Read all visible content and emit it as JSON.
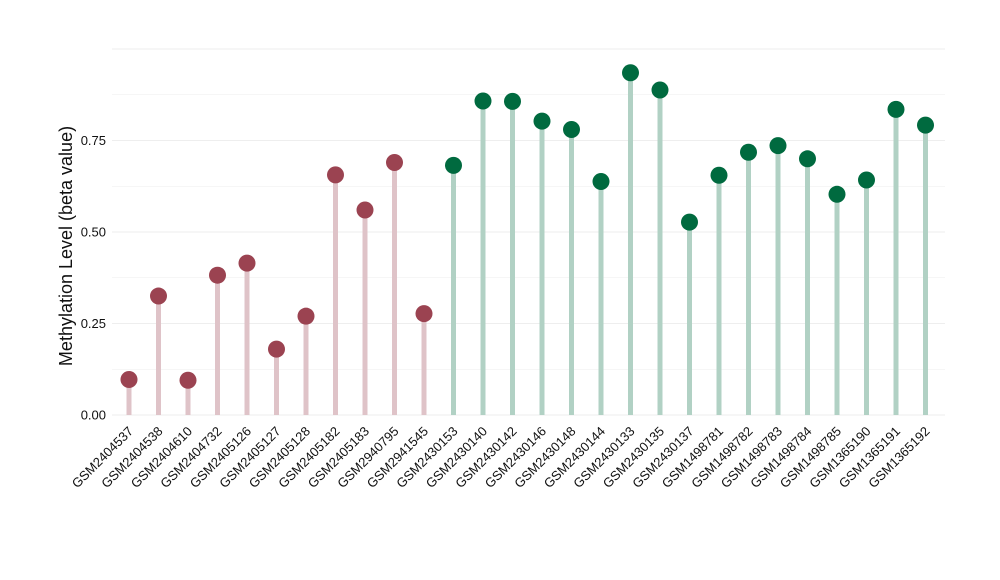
{
  "chart_data": {
    "type": "lollipop",
    "title": "",
    "xlabel": "",
    "ylabel": "Methylation Level (beta value)",
    "ylim": [
      0,
      1.0
    ],
    "yticks": [
      0.0,
      0.25,
      0.5,
      0.75
    ],
    "ytick_labels": [
      "0.00",
      "0.25",
      "0.50",
      "0.75"
    ],
    "grid": true,
    "legend": "none",
    "colors": {
      "group1_point": "#9b4351",
      "group1_stem": "#dfc3c8",
      "group2_point": "#006a3f",
      "group2_stem": "#b1d1c4",
      "grid": "#eeeeee"
    },
    "categories": [
      "GSM2404537",
      "GSM2404538",
      "GSM2404610",
      "GSM2404732",
      "GSM2405126",
      "GSM2405127",
      "GSM2405128",
      "GSM2405182",
      "GSM2405183",
      "GSM2940795",
      "GSM2941545",
      "GSM2430153",
      "GSM2430140",
      "GSM2430142",
      "GSM2430146",
      "GSM2430148",
      "GSM2430144",
      "GSM2430133",
      "GSM2430135",
      "GSM2430137",
      "GSM1498781",
      "GSM1498782",
      "GSM1498783",
      "GSM1498784",
      "GSM1498785",
      "GSM1365190",
      "GSM1365191",
      "GSM1365192"
    ],
    "values": [
      0.097,
      0.325,
      0.095,
      0.382,
      0.415,
      0.18,
      0.27,
      0.656,
      0.56,
      0.69,
      0.277,
      0.682,
      0.858,
      0.857,
      0.803,
      0.78,
      0.638,
      0.935,
      0.888,
      0.527,
      0.655,
      0.718,
      0.736,
      0.7,
      0.603,
      0.642,
      0.835,
      0.792
    ],
    "groups": [
      1,
      1,
      1,
      1,
      1,
      1,
      1,
      1,
      1,
      1,
      1,
      2,
      2,
      2,
      2,
      2,
      2,
      2,
      2,
      2,
      2,
      2,
      2,
      2,
      2,
      2,
      2,
      2
    ]
  }
}
